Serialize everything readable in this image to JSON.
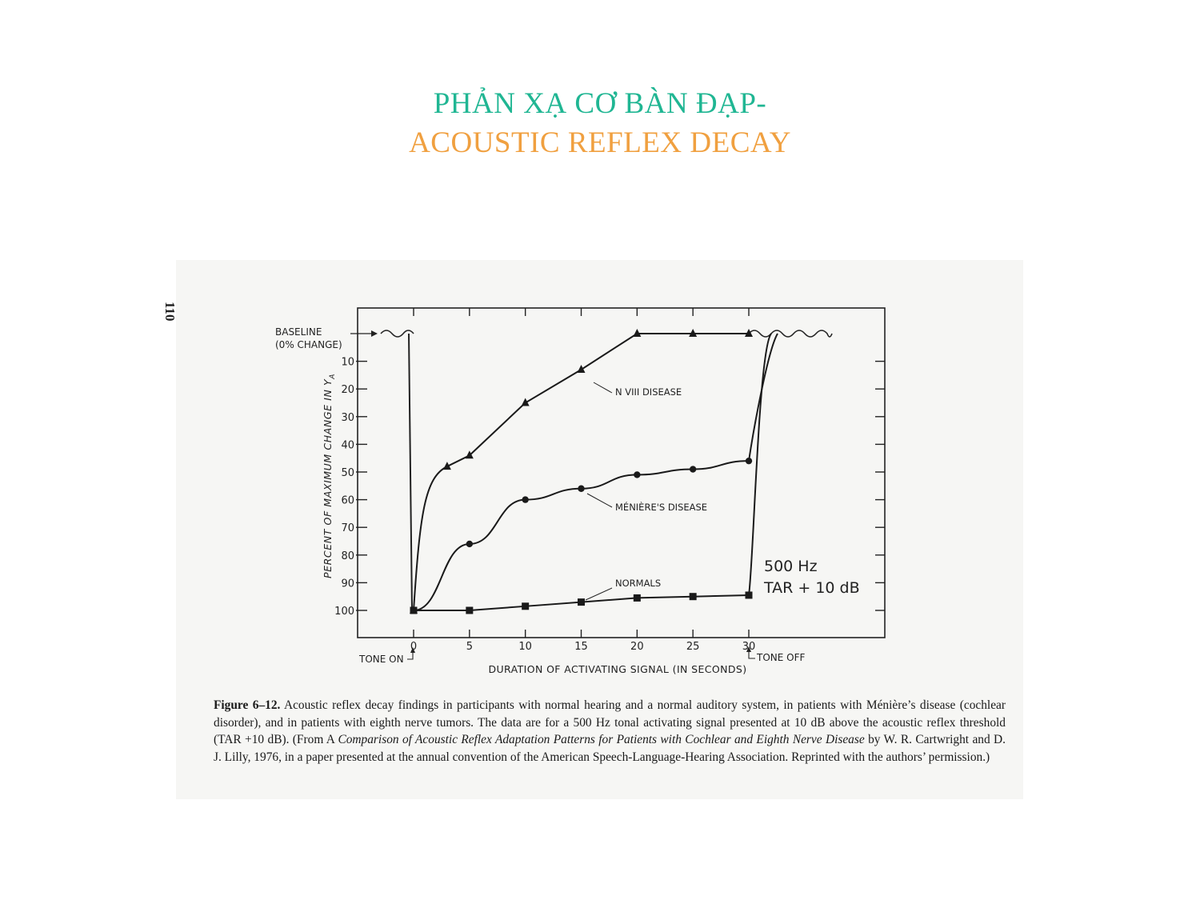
{
  "slide": {
    "title_line1": "PHẢN XẠ CƠ BÀN ĐẠP-",
    "title_line2": "ACOUSTIC REFLEX DECAY",
    "title_line1_color": "#20b693",
    "title_line2_color": "#f0a040"
  },
  "figure": {
    "page_number": "110",
    "caption": {
      "label": "Figure 6–12.",
      "text_part1": " Acoustic reflex decay findings in participants with normal hearing and a normal auditory system, in patients with Ménière’s disease (cochlear disorder), and in patients with eighth nerve tumors. The data are for a 500 Hz tonal activating signal presented at 10 dB above the acoustic reflex threshold (TAR +10 dB). (From A ",
      "italic": "Comparison of Acoustic Reflex Adaptation Patterns for Patients with Cochlear and Eighth Nerve Disease",
      "text_part2": " by W. R. Cartwright and D. J. Lilly, 1976, in a paper presented at the annual convention of the American Speech-Language-Hearing Association. Reprinted with the authors’ permission.)"
    }
  },
  "chart_data": {
    "type": "line",
    "xlabel": "DURATION OF ACTIVATING SIGNAL (IN SECONDS)",
    "ylabel": "PERCENT OF MAXIMUM CHANGE IN Y",
    "ylabel_subscript": "A",
    "xlim": [
      -5,
      42
    ],
    "ylim": [
      0,
      100
    ],
    "y_inverted": true,
    "x_ticks": [
      0,
      5,
      10,
      15,
      20,
      25,
      30
    ],
    "x_tick_labels": [
      "0",
      "5",
      "10",
      "15",
      "20",
      "25",
      "30"
    ],
    "y_ticks": [
      10,
      20,
      30,
      40,
      50,
      60,
      70,
      80,
      90,
      100
    ],
    "y_tick_labels": [
      "10",
      "20",
      "30",
      "40",
      "50",
      "60",
      "70",
      "80",
      "90",
      "100"
    ],
    "baseline_label_line1": "BASELINE",
    "baseline_label_line2": "(0% CHANGE)",
    "tone_on_label": "TONE ON",
    "tone_off_label": "TONE OFF",
    "condition_line1": "500 Hz",
    "condition_line2": "TAR + 10 dB",
    "series": [
      {
        "name": "N VIII DISEASE",
        "marker": "triangle",
        "x": [
          0,
          3,
          5,
          10,
          15,
          20,
          25,
          30
        ],
        "y": [
          100,
          48,
          44,
          25,
          13,
          0,
          0,
          0
        ]
      },
      {
        "name": "MÉNIÈRE'S DISEASE",
        "marker": "circle",
        "x": [
          0,
          5,
          10,
          15,
          20,
          25,
          30
        ],
        "y": [
          100,
          76,
          60,
          56,
          51,
          49,
          46
        ]
      },
      {
        "name": "NORMALS",
        "marker": "square",
        "x": [
          0,
          5,
          10,
          15,
          20,
          25,
          30
        ],
        "y": [
          100,
          100,
          98.5,
          97,
          95.5,
          95,
          94.5
        ]
      }
    ]
  }
}
